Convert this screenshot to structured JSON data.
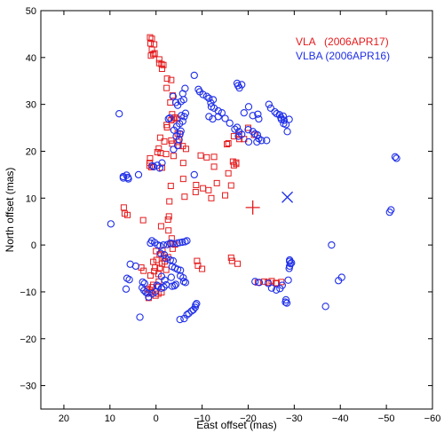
{
  "chart_data": {
    "type": "scatter",
    "title": "",
    "xlabel": "East offset (mas)",
    "ylabel": "North offset (mas)",
    "xlim": [
      25,
      -60
    ],
    "ylim": [
      -35,
      50
    ],
    "xticks": [
      20,
      10,
      0,
      -10,
      -20,
      -30,
      -40,
      -50,
      -60
    ],
    "xtick_labels": [
      "20",
      "10",
      "0",
      "−10",
      "−20",
      "−30",
      "−40",
      "−50",
      "−60"
    ],
    "yticks": [
      -30,
      -20,
      -10,
      0,
      10,
      20,
      30,
      40,
      50
    ],
    "ytick_labels": [
      "−30",
      "−20",
      "−10",
      "0",
      "10",
      "20",
      "30",
      "40",
      "50"
    ],
    "grid": false,
    "legend_position": "top-right",
    "series": [
      {
        "name": "VLA   (2006APR17)",
        "color": "#e41a1c",
        "marker": "square",
        "points": [
          [
            1.3,
            44.3
          ],
          [
            0.9,
            44.0
          ],
          [
            1.2,
            43.0
          ],
          [
            0.4,
            42.8
          ],
          [
            0.9,
            41.7
          ],
          [
            0.3,
            40.9
          ],
          [
            0.6,
            40.7
          ],
          [
            1.1,
            40.4
          ],
          [
            -0.7,
            39.6
          ],
          [
            -0.7,
            38.8
          ],
          [
            -1.2,
            38.6
          ],
          [
            -1.6,
            38.4
          ],
          [
            -1.3,
            37.6
          ],
          [
            -2.4,
            35.5
          ],
          [
            -3.3,
            35.2
          ],
          [
            -2.3,
            33.5
          ],
          [
            -3.6,
            31.9
          ],
          [
            -3.1,
            30.4
          ],
          [
            -3.5,
            27.9
          ],
          [
            -4.1,
            27.2
          ],
          [
            -4.6,
            26.9
          ],
          [
            -3.8,
            26.9
          ],
          [
            -3.3,
            26.6
          ],
          [
            -2.3,
            25.6
          ],
          [
            -2.4,
            25.1
          ],
          [
            -4.7,
            23.8
          ],
          [
            -5.2,
            23.7
          ],
          [
            -5.0,
            22.4
          ],
          [
            -4.7,
            22.0
          ],
          [
            -3.3,
            22.3
          ],
          [
            -3.5,
            21.6
          ],
          [
            -4.9,
            21.2
          ],
          [
            -5.8,
            21.1
          ],
          [
            -0.6,
            20.6
          ],
          [
            -0.3,
            19.8
          ],
          [
            -1.0,
            19.6
          ],
          [
            -2.2,
            19.4
          ],
          [
            -3.8,
            19.0
          ],
          [
            -0.9,
            22.9
          ],
          [
            -1.8,
            22.1
          ],
          [
            1.3,
            18.5
          ],
          [
            1.4,
            17.5
          ],
          [
            1.4,
            16.9
          ],
          [
            1.0,
            16.6
          ],
          [
            -1.3,
            16.5
          ],
          [
            -5.9,
            17.5
          ],
          [
            -6.5,
            20.5
          ],
          [
            -9.7,
            19.1
          ],
          [
            -11.0,
            18.7
          ],
          [
            -12.6,
            18.8
          ],
          [
            -16.7,
            17.8
          ],
          [
            -16.9,
            17.0
          ],
          [
            -17.4,
            17.6
          ],
          [
            -17.4,
            17.3
          ],
          [
            -18.1,
            22.6
          ],
          [
            -15.7,
            21.7
          ],
          [
            -16.9,
            23.2
          ],
          [
            -18.0,
            23.5
          ],
          [
            -20.0,
            25.0
          ],
          [
            -19.1,
            22.6
          ],
          [
            -21.3,
            23.5
          ],
          [
            -15.4,
            21.5
          ],
          [
            -12.6,
            16.7
          ],
          [
            -15.7,
            15.3
          ],
          [
            -10.2,
            12.1
          ],
          [
            -13.2,
            13.2
          ],
          [
            -11.4,
            11.7
          ],
          [
            -15.0,
            10.6
          ],
          [
            -12.0,
            10.0
          ],
          [
            -16.3,
            12.7
          ],
          [
            -5.9,
            14.1
          ],
          [
            -3.2,
            12.6
          ],
          [
            -2.9,
            9.3
          ],
          [
            -6.2,
            10.3
          ],
          [
            -8.6,
            11.3
          ],
          [
            -8.7,
            12.8
          ],
          [
            7.0,
            8.0
          ],
          [
            6.8,
            6.7
          ],
          [
            6.2,
            6.4
          ],
          [
            2.8,
            5.3
          ],
          [
            -2.8,
            6.1
          ],
          [
            -2.6,
            5.4
          ],
          [
            -1.1,
            4.0
          ],
          [
            -2.7,
            3.1
          ],
          [
            -3.4,
            1.4
          ],
          [
            -3.2,
            0.2
          ],
          [
            -4.1,
            0.1
          ],
          [
            -3.6,
            -0.8
          ],
          [
            0.0,
            -1.3
          ],
          [
            -1.4,
            -1.1
          ],
          [
            -2.6,
            -2.6
          ],
          [
            -1.6,
            -2.8
          ],
          [
            -0.8,
            -2.0
          ],
          [
            -0.1,
            -3.2
          ],
          [
            0.6,
            -3.6
          ],
          [
            -1.3,
            -4.0
          ],
          [
            -1.9,
            -3.5
          ],
          [
            -0.8,
            -4.9
          ],
          [
            -2.2,
            -5.3
          ],
          [
            0.2,
            -4.8
          ],
          [
            0.4,
            -5.6
          ],
          [
            -0.5,
            -6.2
          ],
          [
            1.2,
            -6.5
          ],
          [
            2.7,
            -5.5
          ],
          [
            3.2,
            -4.8
          ],
          [
            -0.6,
            -7.8
          ],
          [
            0.6,
            -8.5
          ],
          [
            1.0,
            -10.0
          ],
          [
            1.9,
            -9.4
          ],
          [
            1.6,
            -11.3
          ],
          [
            0.1,
            -10.8
          ],
          [
            0.9,
            -9.0
          ],
          [
            -1.2,
            -10.1
          ],
          [
            -0.5,
            -10.4
          ],
          [
            1.3,
            -9.6
          ],
          [
            -10.0,
            -5.1
          ],
          [
            -16.3,
            -2.7
          ],
          [
            -16.5,
            -3.4
          ],
          [
            -17.7,
            -4.0
          ],
          [
            -8.9,
            -3.4
          ],
          [
            -9.1,
            -4.4
          ],
          [
            -22.1,
            -8.0
          ],
          [
            -23.5,
            -7.8
          ],
          [
            -24.3,
            -8.0
          ],
          [
            -25.1,
            -7.7
          ],
          [
            -26.0,
            -8.1
          ],
          [
            -27.2,
            -7.9
          ],
          [
            -26.2,
            -8.2
          ]
        ]
      },
      {
        "name": "VLBA (2006APR16)",
        "color": "#1f2fe8",
        "marker": "circle",
        "points": [
          [
            8.0,
            28.0
          ],
          [
            -3.7,
            31.7
          ],
          [
            -4.3,
            30.4
          ],
          [
            -4.7,
            29.8
          ],
          [
            -6.3,
            33.4
          ],
          [
            -5.8,
            32.3
          ],
          [
            -6.0,
            31.0
          ],
          [
            -5.4,
            30.6
          ],
          [
            -8.3,
            36.2
          ],
          [
            -9.2,
            33.2
          ],
          [
            -9.5,
            32.7
          ],
          [
            -10.2,
            32.1
          ],
          [
            -11.0,
            31.7
          ],
          [
            -11.5,
            31.3
          ],
          [
            -11.9,
            30.3
          ],
          [
            -12.0,
            29.5
          ],
          [
            -12.6,
            29.2
          ],
          [
            -13.5,
            28.6
          ],
          [
            -14.3,
            28.2
          ],
          [
            -11.5,
            27.4
          ],
          [
            -12.3,
            26.9
          ],
          [
            -13.5,
            27.4
          ],
          [
            -15.0,
            27.0
          ],
          [
            -16.0,
            26.0
          ],
          [
            -17.6,
            34.5
          ],
          [
            -17.8,
            34.0
          ],
          [
            -18.1,
            33.5
          ],
          [
            -18.6,
            34.2
          ],
          [
            -19.1,
            28.2
          ],
          [
            -20.1,
            29.5
          ],
          [
            -21.0,
            27.6
          ],
          [
            -22.1,
            27.9
          ],
          [
            -22.3,
            26.9
          ],
          [
            -24.5,
            30.0
          ],
          [
            -24.9,
            29.2
          ],
          [
            -25.8,
            28.4
          ],
          [
            -26.2,
            28.0
          ],
          [
            -26.8,
            27.8
          ],
          [
            -27.1,
            27.2
          ],
          [
            -27.6,
            27.5
          ],
          [
            -27.2,
            26.8
          ],
          [
            -27.8,
            26.6
          ],
          [
            -27.7,
            25.9
          ],
          [
            -28.2,
            25.7
          ],
          [
            -28.5,
            24.2
          ],
          [
            -28.9,
            26.8
          ],
          [
            -20.0,
            24.6
          ],
          [
            -21.0,
            24.2
          ],
          [
            -21.5,
            23.7
          ],
          [
            -22.0,
            23.5
          ],
          [
            -22.3,
            22.7
          ],
          [
            -22.9,
            22.3
          ],
          [
            -24.0,
            22.3
          ],
          [
            -21.9,
            22.0
          ],
          [
            -3.0,
            27.1
          ],
          [
            -2.7,
            26.9
          ],
          [
            -3.9,
            24.5
          ],
          [
            -4.5,
            25.3
          ],
          [
            -5.4,
            24.3
          ],
          [
            -5.1,
            25.9
          ],
          [
            -5.5,
            27.6
          ],
          [
            -6.1,
            27.4
          ],
          [
            -6.4,
            28.1
          ],
          [
            -5.8,
            26.4
          ],
          [
            -5.2,
            23.7
          ],
          [
            -4.4,
            23.2
          ],
          [
            -5.0,
            22.5
          ],
          [
            -4.7,
            21.2
          ],
          [
            -3.8,
            20.4
          ],
          [
            -1.3,
            17.5
          ],
          [
            -0.3,
            17.0
          ],
          [
            0.8,
            16.9
          ],
          [
            0.5,
            16.7
          ],
          [
            -0.8,
            16.4
          ],
          [
            -8.3,
            15.0
          ],
          [
            -17.9,
            23.2
          ],
          [
            -18.0,
            24.2
          ],
          [
            -18.6,
            23.6
          ],
          [
            -20.1,
            22.0
          ],
          [
            6.4,
            14.9
          ],
          [
            6.1,
            14.4
          ],
          [
            6.0,
            14.1
          ],
          [
            7.1,
            14.6
          ],
          [
            7.1,
            14.3
          ],
          [
            3.8,
            15.0
          ],
          [
            9.8,
            4.5
          ],
          [
            5.6,
            -4.1
          ],
          [
            4.4,
            -4.5
          ],
          [
            6.3,
            -7.1
          ],
          [
            5.8,
            -7.4
          ],
          [
            6.5,
            -9.4
          ],
          [
            3.5,
            -15.4
          ],
          [
            2.9,
            -7.9
          ],
          [
            2.5,
            -8.2
          ],
          [
            3.0,
            -9.1
          ],
          [
            2.6,
            -9.7
          ],
          [
            2.2,
            -10.1
          ],
          [
            1.8,
            -10.3
          ],
          [
            1.6,
            -11.1
          ],
          [
            0.8,
            -10.4
          ],
          [
            0.2,
            -10.0
          ],
          [
            1.2,
            0.4
          ],
          [
            0.9,
            0.9
          ],
          [
            0.3,
            0.5
          ],
          [
            -0.4,
            0.0
          ],
          [
            -0.9,
            -0.2
          ],
          [
            -1.6,
            0.0
          ],
          [
            -2.5,
            0.1
          ],
          [
            -3.1,
            0.4
          ],
          [
            -3.6,
            0.3
          ],
          [
            -4.6,
            0.4
          ],
          [
            -5.1,
            0.5
          ],
          [
            -5.7,
            0.6
          ],
          [
            -6.3,
            0.7
          ],
          [
            -6.7,
            0.9
          ],
          [
            -1.0,
            -1.8
          ],
          [
            -1.8,
            -2.1
          ],
          [
            -2.2,
            -2.9
          ],
          [
            -3.1,
            -3.2
          ],
          [
            -3.7,
            -3.4
          ],
          [
            -3.5,
            -4.6
          ],
          [
            -4.1,
            -4.9
          ],
          [
            -4.7,
            -5.2
          ],
          [
            -5.3,
            -5.4
          ],
          [
            -5.3,
            -6.6
          ],
          [
            -5.9,
            -7.0
          ],
          [
            -6.0,
            -7.8
          ],
          [
            -6.4,
            -8.0
          ],
          [
            -4.3,
            -8.4
          ],
          [
            -4.0,
            -8.7
          ],
          [
            -3.5,
            -8.8
          ],
          [
            -2.2,
            -8.5
          ],
          [
            -1.7,
            -9.0
          ],
          [
            -1.2,
            -9.2
          ],
          [
            -0.5,
            -8.8
          ],
          [
            -0.2,
            -8.6
          ],
          [
            -1.2,
            -6.7
          ],
          [
            -1.9,
            -7.5
          ],
          [
            -3.3,
            -6.9
          ],
          [
            -5.2,
            -15.9
          ],
          [
            -6.1,
            -15.7
          ],
          [
            -6.7,
            -14.9
          ],
          [
            -7.1,
            -14.6
          ],
          [
            -7.7,
            -14.1
          ],
          [
            -8.1,
            -13.8
          ],
          [
            -8.5,
            -13.3
          ],
          [
            -8.6,
            -12.8
          ],
          [
            -8.8,
            -12.5
          ],
          [
            -21.5,
            -7.8
          ],
          [
            -22.4,
            -8.0
          ],
          [
            -24.4,
            -8.2
          ],
          [
            -25.1,
            -9.2
          ],
          [
            -26.1,
            -9.6
          ],
          [
            -26.9,
            -9.3
          ],
          [
            -27.4,
            -8.6
          ],
          [
            -28.2,
            -11.7
          ],
          [
            -28.4,
            -12.4
          ],
          [
            -28.1,
            -12.2
          ],
          [
            -28.7,
            -7.5
          ],
          [
            -29.0,
            -3.2
          ],
          [
            -29.2,
            -4.0
          ],
          [
            -29.4,
            -3.8
          ],
          [
            -29.0,
            -4.5
          ],
          [
            -28.9,
            -5.0
          ],
          [
            -29.0,
            -3.5
          ],
          [
            -38.1,
            0.0
          ],
          [
            -39.6,
            -7.6
          ],
          [
            -40.3,
            -6.9
          ],
          [
            -36.8,
            -13.1
          ],
          [
            -50.7,
            7.0
          ],
          [
            -51.0,
            7.5
          ],
          [
            -51.9,
            18.8
          ],
          [
            -52.2,
            18.5
          ],
          [
            -17.1,
            24.7
          ],
          [
            -17.6,
            25.1
          ],
          [
            -12.4,
            31.0
          ]
        ]
      }
    ],
    "markers": [
      {
        "symbol": "plus",
        "x": -21.0,
        "y": 8.0,
        "color": "#e41a1c"
      },
      {
        "symbol": "cross",
        "x": -28.5,
        "y": 10.2,
        "color": "#1f2fe8"
      }
    ]
  }
}
